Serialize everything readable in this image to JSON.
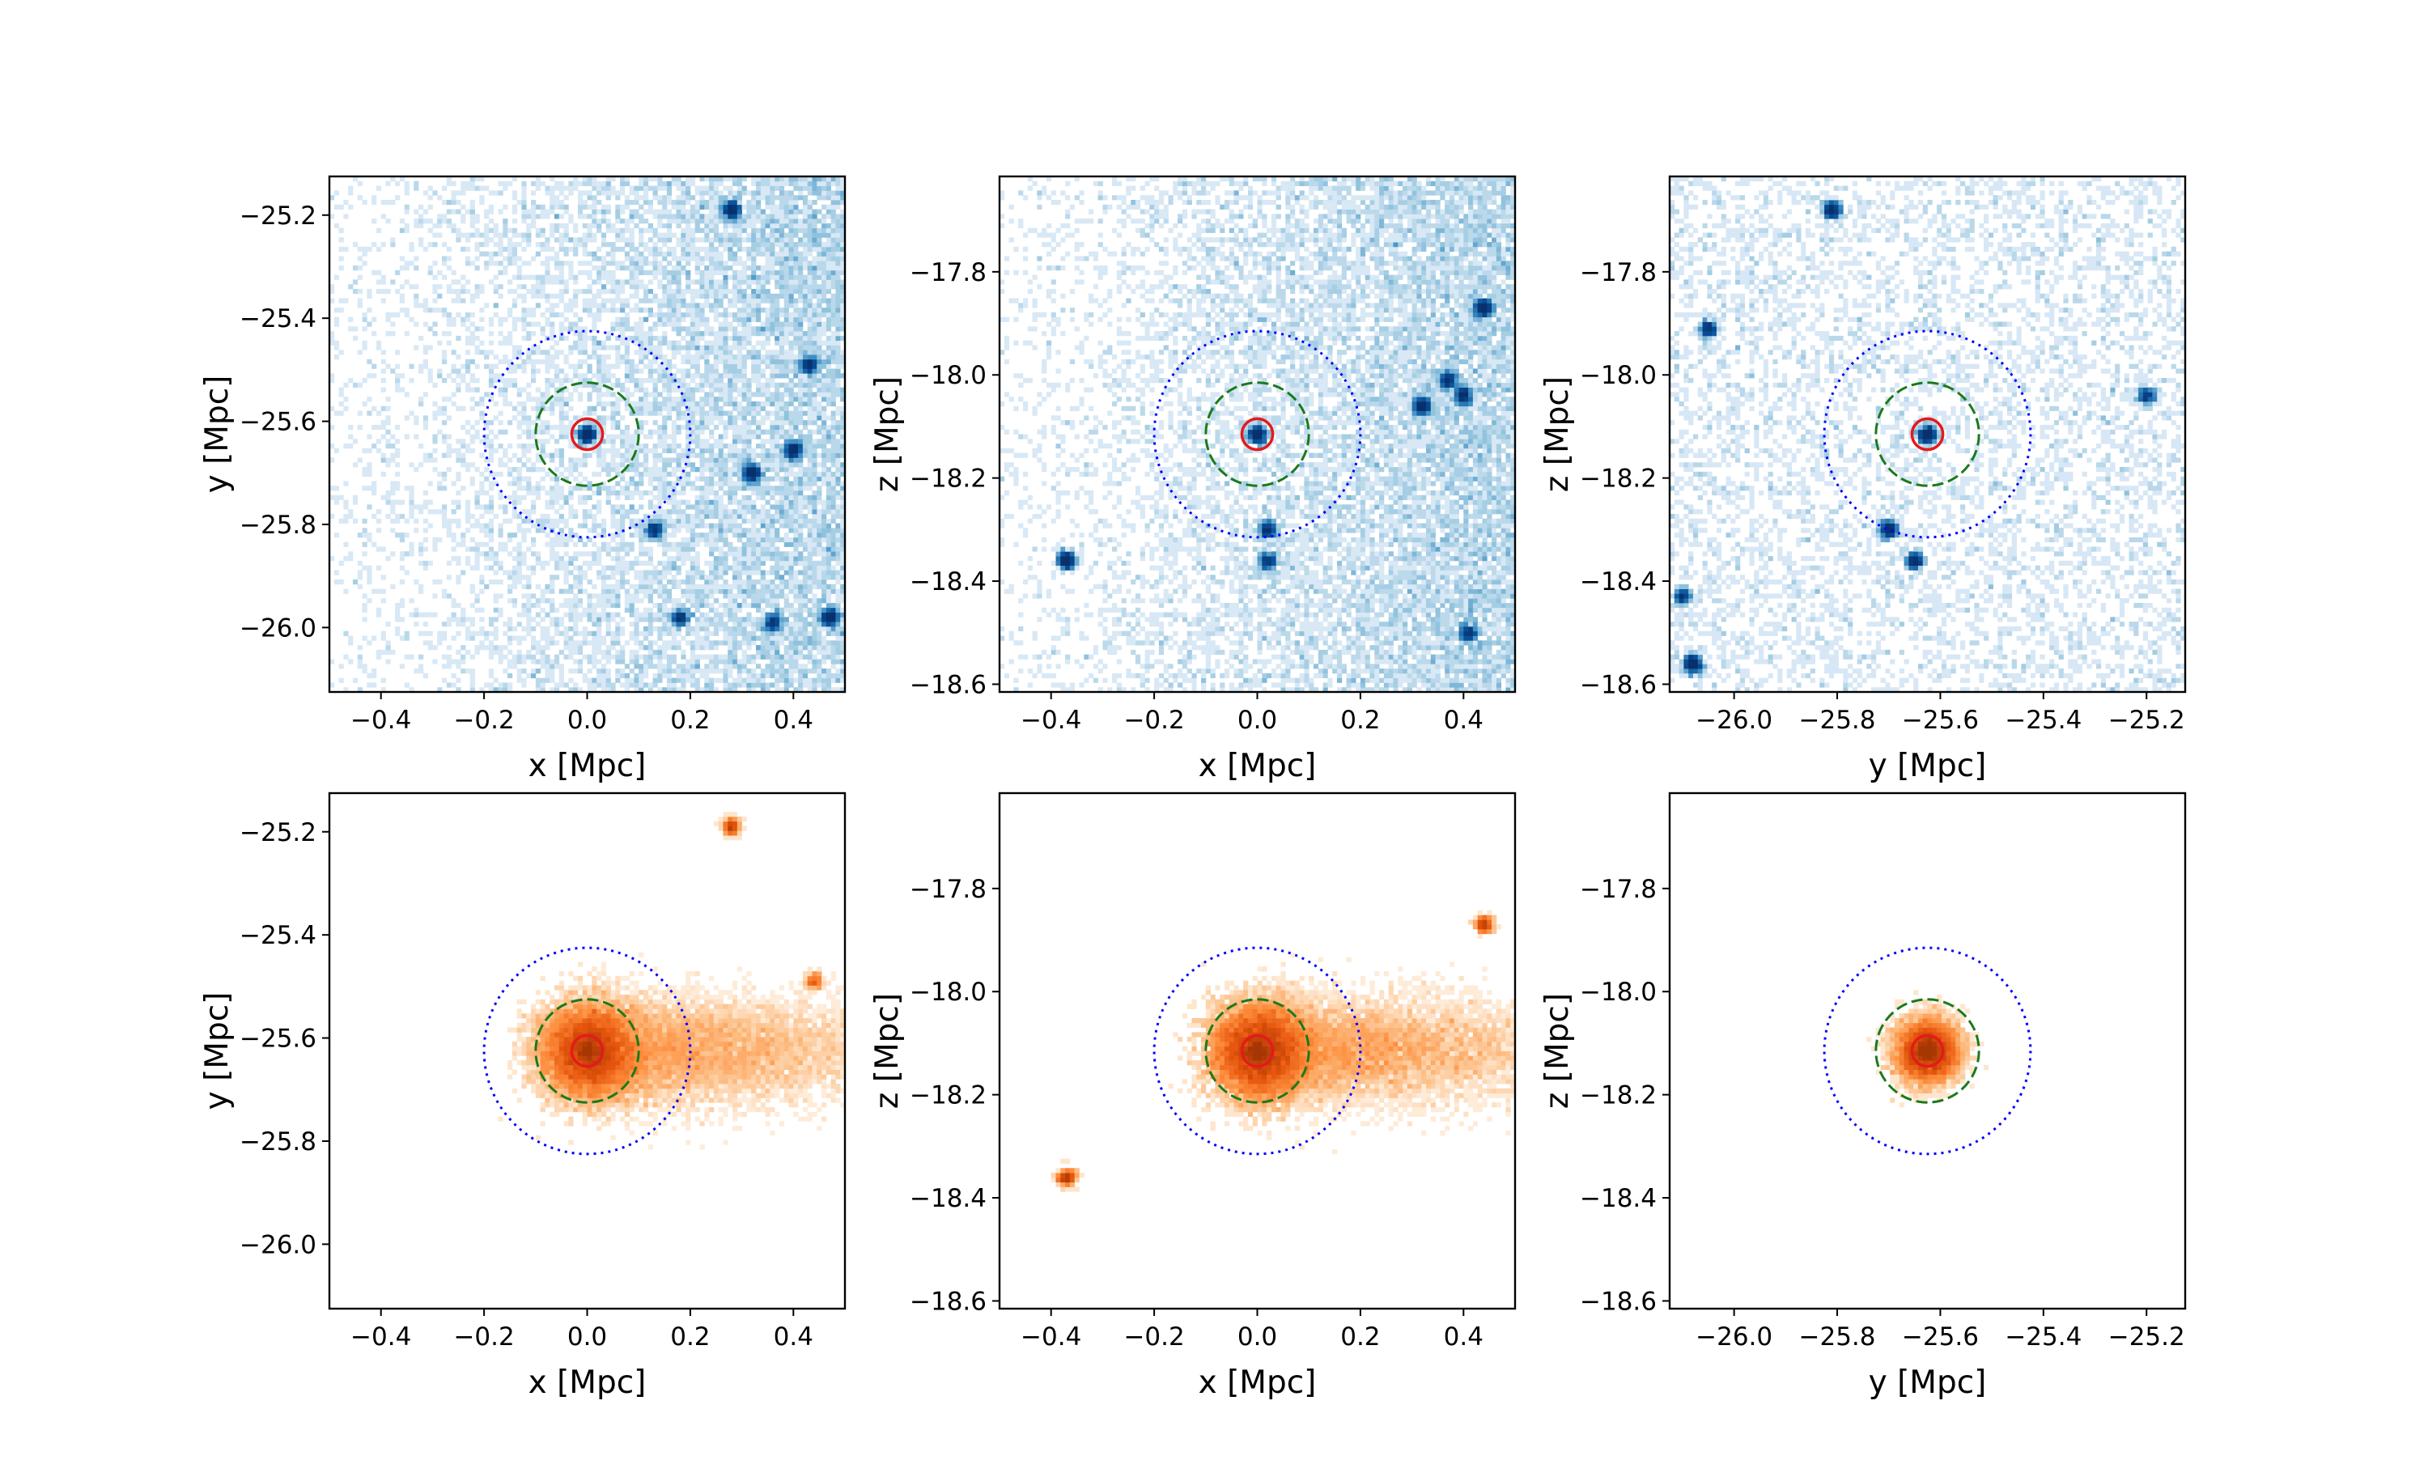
{
  "figure": {
    "layout": "2 rows x 3 columns of projected particle-density maps"
  },
  "chart_data": [
    {
      "type": "heatmap",
      "row": 1,
      "col": 1,
      "colormap": "blue",
      "xlabel": "x [Mpc]",
      "ylabel": "y [Mpc]",
      "xlim": [
        -0.5,
        0.5
      ],
      "ylim": [
        -26.125,
        -25.125
      ],
      "xticks": [
        -0.4,
        -0.2,
        0.0,
        0.2,
        0.4
      ],
      "xtick_labels": [
        "−0.4",
        "−0.2",
        "0.0",
        "0.2",
        "0.4"
      ],
      "yticks": [
        -26.0,
        -25.8,
        -25.6,
        -25.4,
        -25.2
      ],
      "ytick_labels": [
        "−26.0",
        "−25.8",
        "−25.6",
        "−25.4",
        "−25.2"
      ],
      "center": [
        0.0,
        -25.625
      ],
      "circles": [
        {
          "radius": 0.03,
          "color": "#e41a1c",
          "style": "solid"
        },
        {
          "radius": 0.1,
          "color": "#1a7a1a",
          "style": "dashed"
        },
        {
          "radius": 0.2,
          "color": "#0000ff",
          "style": "dotted"
        }
      ],
      "background": "diffuse density increasing toward +x",
      "clumps": [
        {
          "x": 0.0,
          "y": -25.625,
          "intensity": 1.0
        },
        {
          "x": 0.28,
          "y": -25.19,
          "intensity": 0.8
        },
        {
          "x": 0.32,
          "y": -25.7,
          "intensity": 0.9
        },
        {
          "x": 0.4,
          "y": -25.655,
          "intensity": 0.8
        },
        {
          "x": 0.43,
          "y": -25.49,
          "intensity": 0.6
        },
        {
          "x": 0.47,
          "y": -25.98,
          "intensity": 0.9
        },
        {
          "x": 0.13,
          "y": -25.81,
          "intensity": 0.5
        },
        {
          "x": 0.18,
          "y": -25.98,
          "intensity": 0.5
        },
        {
          "x": 0.36,
          "y": -25.99,
          "intensity": 0.5
        }
      ]
    },
    {
      "type": "heatmap",
      "row": 1,
      "col": 2,
      "colormap": "blue",
      "xlabel": "x [Mpc]",
      "ylabel": "z [Mpc]",
      "xlim": [
        -0.5,
        0.5
      ],
      "ylim": [
        -18.615,
        -17.615
      ],
      "xticks": [
        -0.4,
        -0.2,
        0.0,
        0.2,
        0.4
      ],
      "xtick_labels": [
        "−0.4",
        "−0.2",
        "0.0",
        "0.2",
        "0.4"
      ],
      "yticks": [
        -18.6,
        -18.4,
        -18.2,
        -18.0,
        -17.8
      ],
      "ytick_labels": [
        "−18.6",
        "−18.4",
        "−18.2",
        "−18.0",
        "−17.8"
      ],
      "center": [
        0.0,
        -18.115
      ],
      "circles": [
        {
          "radius": 0.03,
          "color": "#e41a1c",
          "style": "solid"
        },
        {
          "radius": 0.1,
          "color": "#1a7a1a",
          "style": "dashed"
        },
        {
          "radius": 0.2,
          "color": "#0000ff",
          "style": "dotted"
        }
      ],
      "background": "diffuse density increasing toward +x",
      "clumps": [
        {
          "x": 0.0,
          "y": -18.115,
          "intensity": 1.0
        },
        {
          "x": -0.37,
          "y": -18.36,
          "intensity": 1.0
        },
        {
          "x": 0.44,
          "y": -17.87,
          "intensity": 0.9
        },
        {
          "x": 0.32,
          "y": -18.06,
          "intensity": 0.8
        },
        {
          "x": 0.4,
          "y": -18.04,
          "intensity": 0.7
        },
        {
          "x": 0.37,
          "y": -18.01,
          "intensity": 0.6
        },
        {
          "x": 0.02,
          "y": -18.3,
          "intensity": 0.6
        },
        {
          "x": 0.02,
          "y": -18.36,
          "intensity": 0.5
        },
        {
          "x": 0.41,
          "y": -18.5,
          "intensity": 0.5
        }
      ]
    },
    {
      "type": "heatmap",
      "row": 1,
      "col": 3,
      "colormap": "blue",
      "xlabel": "y [Mpc]",
      "ylabel": "z [Mpc]",
      "xlim": [
        -26.125,
        -25.125
      ],
      "ylim": [
        -18.615,
        -17.615
      ],
      "xticks": [
        -26.0,
        -25.8,
        -25.6,
        -25.4,
        -25.2
      ],
      "xtick_labels": [
        "−26.0",
        "−25.8",
        "−25.6",
        "−25.4",
        "−25.2"
      ],
      "yticks": [
        -18.6,
        -18.4,
        -18.2,
        -18.0,
        -17.8
      ],
      "ytick_labels": [
        "−18.6",
        "−18.4",
        "−18.2",
        "−18.0",
        "−17.8"
      ],
      "center": [
        -25.625,
        -18.115
      ],
      "circles": [
        {
          "radius": 0.03,
          "color": "#e41a1c",
          "style": "solid"
        },
        {
          "radius": 0.1,
          "color": "#1a7a1a",
          "style": "dashed"
        },
        {
          "radius": 0.2,
          "color": "#0000ff",
          "style": "dotted"
        }
      ],
      "background": "sparse diffuse density",
      "clumps": [
        {
          "x": -25.625,
          "y": -18.115,
          "intensity": 1.0
        },
        {
          "x": -25.81,
          "y": -17.68,
          "intensity": 0.7
        },
        {
          "x": -26.05,
          "y": -17.91,
          "intensity": 0.5
        },
        {
          "x": -25.7,
          "y": -18.3,
          "intensity": 0.7
        },
        {
          "x": -25.65,
          "y": -18.36,
          "intensity": 0.6
        },
        {
          "x": -26.08,
          "y": -18.56,
          "intensity": 0.9
        },
        {
          "x": -26.1,
          "y": -18.43,
          "intensity": 0.4
        },
        {
          "x": -25.2,
          "y": -18.04,
          "intensity": 0.4
        }
      ]
    },
    {
      "type": "heatmap",
      "row": 2,
      "col": 1,
      "colormap": "orange",
      "xlabel": "x [Mpc]",
      "ylabel": "y [Mpc]",
      "xlim": [
        -0.5,
        0.5
      ],
      "ylim": [
        -26.125,
        -25.125
      ],
      "xticks": [
        -0.4,
        -0.2,
        0.0,
        0.2,
        0.4
      ],
      "xtick_labels": [
        "−0.4",
        "−0.2",
        "0.0",
        "0.2",
        "0.4"
      ],
      "yticks": [
        -26.0,
        -25.8,
        -25.6,
        -25.4,
        -25.2
      ],
      "ytick_labels": [
        "−26.0",
        "−25.8",
        "−25.6",
        "−25.4",
        "−25.2"
      ],
      "center": [
        0.0,
        -25.625
      ],
      "circles": [
        {
          "radius": 0.03,
          "color": "#e41a1c",
          "style": "solid"
        },
        {
          "radius": 0.1,
          "color": "#1a7a1a",
          "style": "dashed"
        },
        {
          "radius": 0.2,
          "color": "#0000ff",
          "style": "dotted"
        }
      ],
      "background": "concentrated emission near center with a faint band toward +x",
      "clumps": [
        {
          "x": 0.0,
          "y": -25.625,
          "intensity": 1.0
        },
        {
          "x": 0.28,
          "y": -25.19,
          "intensity": 0.6
        },
        {
          "x": 0.44,
          "y": -25.49,
          "intensity": 0.3
        }
      ]
    },
    {
      "type": "heatmap",
      "row": 2,
      "col": 2,
      "colormap": "orange",
      "xlabel": "x [Mpc]",
      "ylabel": "z [Mpc]",
      "xlim": [
        -0.5,
        0.5
      ],
      "ylim": [
        -18.615,
        -17.615
      ],
      "xticks": [
        -0.4,
        -0.2,
        0.0,
        0.2,
        0.4
      ],
      "xtick_labels": [
        "−0.4",
        "−0.2",
        "0.0",
        "0.2",
        "0.4"
      ],
      "yticks": [
        -18.6,
        -18.4,
        -18.2,
        -18.0,
        -17.8
      ],
      "ytick_labels": [
        "−18.6",
        "−18.4",
        "−18.2",
        "−18.0",
        "−17.8"
      ],
      "center": [
        0.0,
        -18.115
      ],
      "circles": [
        {
          "radius": 0.03,
          "color": "#e41a1c",
          "style": "solid"
        },
        {
          "radius": 0.1,
          "color": "#1a7a1a",
          "style": "dashed"
        },
        {
          "radius": 0.2,
          "color": "#0000ff",
          "style": "dotted"
        }
      ],
      "background": "concentrated emission near center with a faint band toward +x",
      "clumps": [
        {
          "x": 0.0,
          "y": -18.115,
          "intensity": 1.0
        },
        {
          "x": -0.37,
          "y": -18.36,
          "intensity": 0.7
        },
        {
          "x": 0.44,
          "y": -17.87,
          "intensity": 0.6
        }
      ]
    },
    {
      "type": "heatmap",
      "row": 2,
      "col": 3,
      "colormap": "orange",
      "xlabel": "y [Mpc]",
      "ylabel": "z [Mpc]",
      "xlim": [
        -26.125,
        -25.125
      ],
      "ylim": [
        -18.615,
        -17.615
      ],
      "xticks": [
        -26.0,
        -25.8,
        -25.6,
        -25.4,
        -25.2
      ],
      "xtick_labels": [
        "−26.0",
        "−25.8",
        "−25.6",
        "−25.4",
        "−25.2"
      ],
      "yticks": [
        -18.6,
        -18.4,
        -18.2,
        -18.0,
        -17.8
      ],
      "ytick_labels": [
        "−18.6",
        "−18.4",
        "−18.2",
        "−18.0",
        "−17.8"
      ],
      "center": [
        -25.625,
        -18.115
      ],
      "circles": [
        {
          "radius": 0.03,
          "color": "#e41a1c",
          "style": "solid"
        },
        {
          "radius": 0.1,
          "color": "#1a7a1a",
          "style": "dashed"
        },
        {
          "radius": 0.2,
          "color": "#0000ff",
          "style": "dotted"
        }
      ],
      "background": "compact emission concentrated at center",
      "clumps": [
        {
          "x": -25.625,
          "y": -18.115,
          "intensity": 1.0
        }
      ]
    }
  ]
}
